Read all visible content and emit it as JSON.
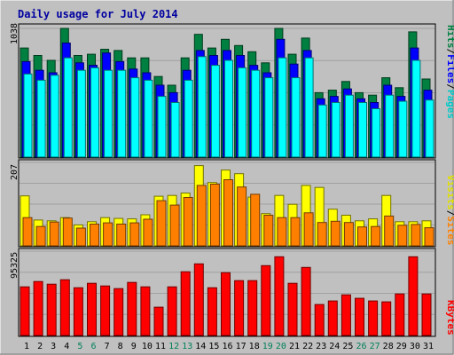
{
  "chart_data": {
    "type": "bar",
    "title": "Daily usage for July 2014",
    "categories": [
      "1",
      "2",
      "3",
      "4",
      "5",
      "6",
      "7",
      "8",
      "9",
      "10",
      "11",
      "12",
      "13",
      "14",
      "15",
      "16",
      "17",
      "18",
      "19",
      "20",
      "21",
      "22",
      "23",
      "24",
      "25",
      "26",
      "27",
      "28",
      "29",
      "30",
      "31"
    ],
    "weekend_categories": [
      "5",
      "6",
      "12",
      "13",
      "19",
      "20",
      "26",
      "27"
    ],
    "grid": true,
    "panels": [
      {
        "name": "top",
        "max_label": "1038",
        "ymax": 1038,
        "series": [
          {
            "name": "Hits",
            "color": "#008040",
            "values": [
              880,
              820,
              780,
              1038,
              820,
              830,
              870,
              860,
              800,
              800,
              650,
              580,
              800,
              990,
              880,
              950,
              900,
              850,
              760,
              1038,
              830,
              960,
              520,
              540,
              610,
              520,
              500,
              640,
              560,
              1010,
              630
            ]
          },
          {
            "name": "Files",
            "color": "#0000ff",
            "values": [
              770,
              700,
              680,
              920,
              760,
              740,
              840,
              770,
              710,
              680,
              580,
              520,
              700,
              860,
              820,
              860,
              820,
              740,
              680,
              950,
              750,
              860,
              470,
              490,
              550,
              470,
              440,
              580,
              490,
              880,
              540
            ]
          },
          {
            "name": "Pages",
            "color": "#00ffff",
            "values": [
              670,
              620,
              660,
              800,
              700,
              720,
              700,
              700,
              640,
              620,
              490,
              440,
              620,
              810,
              740,
              780,
              720,
              700,
              640,
              800,
              640,
              800,
              420,
              440,
              500,
              440,
              390,
              500,
              450,
              780,
              460
            ]
          }
        ],
        "legend": [
          {
            "text": "Hits",
            "color": "#008040"
          },
          {
            "text": "/",
            "color": "#000000"
          },
          {
            "text": "Files",
            "color": "#0000ff"
          },
          {
            "text": "/",
            "color": "#000000"
          },
          {
            "text": "Pages",
            "color": "#00ffff"
          }
        ]
      },
      {
        "name": "middle",
        "max_label": "207",
        "ymax": 207,
        "series": [
          {
            "name": "Visits",
            "color": "#ffff00",
            "values": [
              124,
              64,
              62,
              70,
              52,
              60,
              70,
              68,
              67,
              77,
              123,
              125,
              131,
              199,
              157,
              188,
              179,
              121,
              80,
              125,
              103,
              150,
              145,
              91,
              76,
              62,
              67,
              125,
              60,
              60,
              62
            ]
          },
          {
            "name": "Sites",
            "color": "#ff8000",
            "values": [
              70,
              48,
              59,
              69,
              44,
              54,
              57,
              54,
              57,
              66,
              112,
              101,
              120,
              150,
              153,
              164,
              146,
              128,
              76,
              70,
              70,
              82,
              58,
              61,
              58,
              47,
              48,
              74,
              51,
              53,
              45
            ]
          }
        ],
        "legend": [
          {
            "text": "Visits",
            "color": "#ffff00"
          },
          {
            "text": "/",
            "color": "#000000"
          },
          {
            "text": "Sites",
            "color": "#ff8000"
          }
        ]
      },
      {
        "name": "bottom",
        "max_label": "95325",
        "ymax": 95325,
        "series": [
          {
            "name": "KBytes",
            "color": "#ff0000",
            "values": [
              55000,
              61000,
              58000,
              63000,
              54000,
              59000,
              56000,
              53000,
              60000,
              55000,
              32000,
              55000,
              72000,
              81000,
              54000,
              71000,
              62000,
              62000,
              79000,
              89000,
              59000,
              77000,
              35000,
              39000,
              46000,
              42000,
              39000,
              38000,
              47000,
              89000,
              47000
            ]
          }
        ],
        "legend": [
          {
            "text": "KBytes",
            "color": "#ff0000"
          }
        ]
      }
    ]
  }
}
